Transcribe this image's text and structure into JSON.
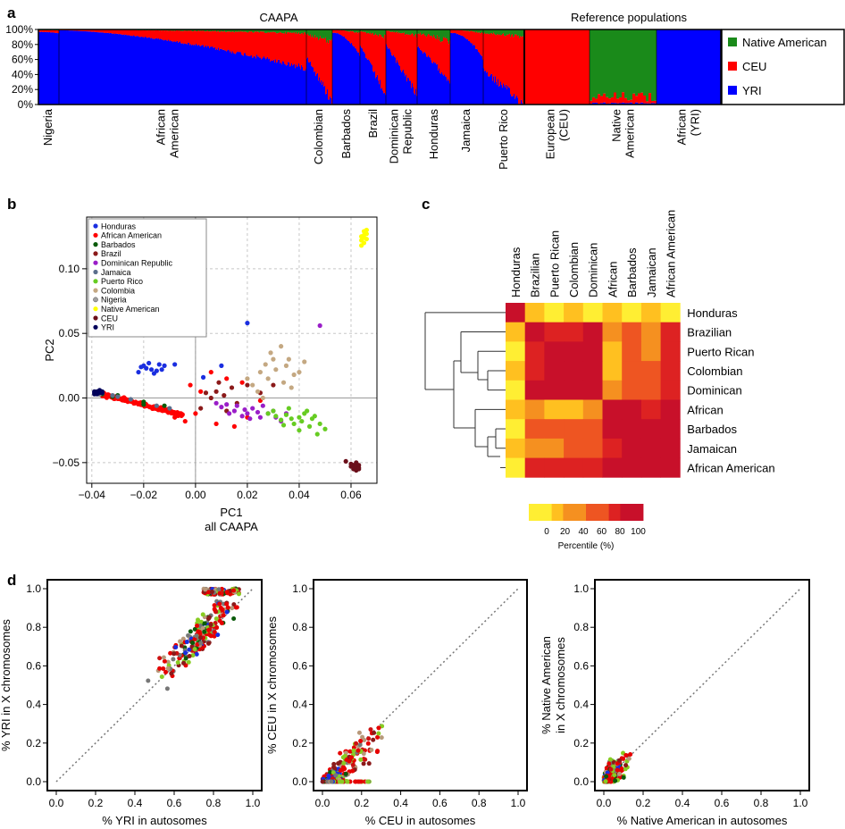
{
  "panel_labels": {
    "a": "a",
    "b": "b",
    "c": "c",
    "d": "d"
  },
  "colors": {
    "yri": "#0000ff",
    "ceu": "#ff0000",
    "native": "#1a8a1a",
    "text": "#000000"
  },
  "chart_data": [
    {
      "id": "a",
      "type": "bar",
      "subtype": "stacked-ancestry",
      "group_headers": [
        "CAAPA",
        "Reference populations"
      ],
      "ylim": [
        0,
        100
      ],
      "yticks": [
        "0%",
        "20%",
        "40%",
        "60%",
        "80%",
        "100%"
      ],
      "categories": [
        "Nigeria",
        "African American",
        "Colombian",
        "Barbados",
        "Brazil",
        "Dominican Republic",
        "Honduras",
        "Jamaica",
        "Puerto Rico",
        "European (CEU)",
        "Native American",
        "African (YRI)"
      ],
      "category_lines": [
        [
          "Nigeria"
        ],
        [
          "African",
          "American"
        ],
        [
          "Colombian"
        ],
        [
          "Barbados"
        ],
        [
          "Brazil"
        ],
        [
          "Dominican",
          "Republic"
        ],
        [
          "Honduras"
        ],
        [
          "Jamaica"
        ],
        [
          "Puerto Rico"
        ],
        [
          "European",
          "(CEU)"
        ],
        [
          "Native",
          "American"
        ],
        [
          "African",
          "(YRI)"
        ]
      ],
      "series": [
        {
          "name": "YRI",
          "mean_values": [
            96,
            79,
            34,
            86,
            46,
            47,
            55,
            85,
            23,
            0,
            2,
            100
          ]
        },
        {
          "name": "CEU",
          "mean_values": [
            3,
            19,
            55,
            12,
            48,
            48,
            35,
            13,
            70,
            100,
            8,
            0
          ]
        },
        {
          "name": "Native American",
          "mean_values": [
            1,
            2,
            11,
            2,
            6,
            5,
            10,
            2,
            7,
            0,
            90,
            0
          ]
        }
      ],
      "legend": [
        "Native American",
        "CEU",
        "YRI"
      ],
      "legend_position": "right"
    },
    {
      "id": "b",
      "type": "scatter",
      "title": "",
      "xlabel": "PC1",
      "xlabel2": "all CAAPA",
      "ylabel": "PC2",
      "xlim": [
        -0.042,
        0.07
      ],
      "ylim": [
        -0.066,
        0.14
      ],
      "xticks": [
        -0.04,
        -0.02,
        0.0,
        0.02,
        0.04,
        0.06
      ],
      "xtick_labels": [
        "−0.04",
        "−0.02",
        "0.00",
        "0.02",
        "0.04",
        "0.06"
      ],
      "yticks": [
        -0.05,
        0.0,
        0.05,
        0.1
      ],
      "ytick_labels": [
        "−0.05",
        "0.00",
        "0.05",
        "0.10"
      ],
      "legend_position": "top-left",
      "series": [
        {
          "name": "Honduras",
          "color": "#1a2ee0",
          "cluster": [
            [
              -0.02,
              0.025
            ],
            [
              -0.017,
              0.022
            ],
            [
              -0.014,
              0.026
            ],
            [
              -0.022,
              0.02
            ],
            [
              -0.018,
              0.027
            ],
            [
              -0.015,
              0.021
            ],
            [
              -0.012,
              0.025
            ],
            [
              -0.021,
              0.024
            ],
            [
              -0.016,
              0.019
            ],
            [
              -0.019,
              0.023
            ],
            [
              -0.013,
              0.022
            ],
            [
              -0.008,
              0.026
            ],
            [
              0.02,
              0.058
            ],
            [
              0.01,
              0.025
            ],
            [
              0.003,
              0.016
            ]
          ]
        },
        {
          "name": "African American",
          "color": "#ff0000",
          "line": {
            "from": [
              -0.036,
              0.003
            ],
            "to": [
              -0.005,
              -0.013
            ],
            "n": 140,
            "spread": 0.0022
          }
        },
        {
          "name": "Barbados",
          "color": "#0a5a0a",
          "points": [
            [
              -0.036,
              0.003
            ],
            [
              -0.03,
              0.002
            ],
            [
              -0.02,
              -0.003
            ],
            [
              -0.012,
              -0.006
            ],
            [
              -0.02,
              -0.005
            ],
            [
              -0.032,
              0.001
            ]
          ]
        },
        {
          "name": "Brazil",
          "color": "#8b1a1a",
          "cluster": [
            [
              0.008,
              0.005
            ],
            [
              0.014,
              0.008
            ],
            [
              0.006,
              0.0
            ],
            [
              0.02,
              0.01
            ],
            [
              0.012,
              -0.01
            ],
            [
              0.004,
              0.004
            ],
            [
              0.025,
              0.004
            ],
            [
              0.016,
              -0.004
            ],
            [
              0.009,
              0.012
            ],
            [
              0.002,
              -0.008
            ],
            [
              0.03,
              0.01
            ],
            [
              0.011,
              0.002
            ]
          ]
        },
        {
          "name": "Dominican Republic",
          "color": "#9a1ec8",
          "cluster": [
            [
              0.01,
              -0.007
            ],
            [
              0.015,
              -0.01
            ],
            [
              0.02,
              -0.012
            ],
            [
              0.025,
              -0.015
            ],
            [
              0.03,
              -0.01
            ],
            [
              0.012,
              -0.005
            ],
            [
              0.022,
              -0.008
            ],
            [
              0.018,
              -0.014
            ],
            [
              0.028,
              -0.012
            ],
            [
              0.033,
              -0.018
            ],
            [
              0.008,
              -0.004
            ],
            [
              0.026,
              -0.006
            ],
            [
              0.035,
              -0.012
            ],
            [
              0.021,
              -0.016
            ],
            [
              0.016,
              -0.006
            ],
            [
              0.031,
              -0.015
            ],
            [
              0.013,
              -0.012
            ],
            [
              0.024,
              -0.011
            ],
            [
              0.019,
              -0.009
            ],
            [
              0.048,
              0.056
            ]
          ]
        },
        {
          "name": "Jamaica",
          "color": "#5a6e8c",
          "points": [
            [
              -0.032,
              0.002
            ],
            [
              -0.025,
              -0.001
            ],
            [
              -0.015,
              -0.006
            ],
            [
              -0.03,
              0.001
            ],
            [
              -0.01,
              -0.008
            ]
          ]
        },
        {
          "name": "Puerto Rico",
          "color": "#66cc22",
          "cluster": [
            [
              0.03,
              -0.01
            ],
            [
              0.035,
              -0.013
            ],
            [
              0.04,
              -0.015
            ],
            [
              0.045,
              -0.016
            ],
            [
              0.038,
              -0.02
            ],
            [
              0.042,
              -0.012
            ],
            [
              0.033,
              -0.017
            ],
            [
              0.048,
              -0.02
            ],
            [
              0.036,
              -0.008
            ],
            [
              0.044,
              -0.022
            ],
            [
              0.04,
              -0.025
            ],
            [
              0.046,
              -0.014
            ],
            [
              0.031,
              -0.014
            ],
            [
              0.037,
              -0.016
            ],
            [
              0.05,
              -0.024
            ],
            [
              0.028,
              -0.012
            ],
            [
              0.041,
              -0.018
            ],
            [
              0.034,
              -0.021
            ],
            [
              0.047,
              -0.028
            ],
            [
              0.043,
              -0.01
            ]
          ]
        },
        {
          "name": "Colombia",
          "color": "#c4a882",
          "cluster": [
            [
              0.025,
              0.02
            ],
            [
              0.03,
              0.03
            ],
            [
              0.035,
              0.025
            ],
            [
              0.033,
              0.04
            ],
            [
              0.028,
              0.015
            ],
            [
              0.038,
              0.018
            ],
            [
              0.022,
              0.01
            ],
            [
              0.036,
              0.03
            ],
            [
              0.031,
              0.022
            ],
            [
              0.027,
              0.026
            ],
            [
              0.04,
              0.02
            ],
            [
              0.024,
              0.005
            ],
            [
              0.034,
              0.012
            ],
            [
              0.029,
              0.035
            ],
            [
              0.042,
              0.028
            ],
            [
              0.02,
              0.015
            ],
            [
              0.037,
              0.008
            ],
            [
              0.026,
              0.0
            ]
          ]
        },
        {
          "name": "Nigeria",
          "color": "#a0a0a0",
          "points": [
            [
              -0.038,
              0.004
            ],
            [
              -0.037,
              0.005
            ],
            [
              -0.036,
              0.004
            ],
            [
              -0.037,
              0.003
            ]
          ]
        },
        {
          "name": "Native American",
          "color": "#ffff00",
          "cluster": [
            [
              0.064,
              0.122
            ],
            [
              0.065,
              0.126
            ],
            [
              0.066,
              0.13
            ],
            [
              0.064,
              0.118
            ],
            [
              0.065,
              0.124
            ],
            [
              0.066,
              0.127
            ],
            [
              0.065,
              0.12
            ],
            [
              0.064,
              0.125
            ],
            [
              0.066,
              0.123
            ],
            [
              0.065,
              0.129
            ]
          ]
        },
        {
          "name": "CEU",
          "color": "#6b0f1a",
          "cluster": [
            [
              0.061,
              -0.052
            ],
            [
              0.062,
              -0.053
            ],
            [
              0.06,
              -0.051
            ],
            [
              0.063,
              -0.054
            ],
            [
              0.061,
              -0.055
            ],
            [
              0.062,
              -0.05
            ],
            [
              0.06,
              -0.053
            ],
            [
              0.063,
              -0.052
            ],
            [
              0.061,
              -0.054
            ],
            [
              0.062,
              -0.056
            ],
            [
              0.058,
              -0.049
            ],
            [
              0.063,
              -0.055
            ]
          ]
        },
        {
          "name": "YRI",
          "color": "#00005a",
          "cluster": [
            [
              -0.039,
              0.004
            ],
            [
              -0.038,
              0.005
            ],
            [
              -0.038,
              0.003
            ],
            [
              -0.037,
              0.004
            ],
            [
              -0.039,
              0.005
            ],
            [
              -0.036,
              0.005
            ],
            [
              -0.038,
              0.004
            ],
            [
              -0.037,
              0.006
            ],
            [
              -0.039,
              0.003
            ],
            [
              -0.036,
              0.004
            ]
          ]
        }
      ]
    },
    {
      "id": "c",
      "type": "heatmap",
      "column_labels": [
        "Honduras",
        "Brazilian",
        "Puerto Rican",
        "Colombian",
        "Dominican",
        "African",
        "Barbados",
        "Jamaican",
        "African American"
      ],
      "row_labels": [
        "Honduras",
        "Brazilian",
        "Puerto Rican",
        "Colombian",
        "Dominican",
        "African",
        "Barbados",
        "Jamaican",
        "African American"
      ],
      "values": [
        [
          100,
          20,
          15,
          20,
          15,
          20,
          15,
          20,
          15
        ],
        [
          20,
          100,
          80,
          80,
          90,
          40,
          60,
          50,
          70
        ],
        [
          15,
          80,
          100,
          90,
          90,
          25,
          60,
          40,
          70
        ],
        [
          20,
          80,
          90,
          100,
          95,
          30,
          60,
          55,
          70
        ],
        [
          15,
          90,
          90,
          95,
          100,
          40,
          60,
          60,
          75
        ],
        [
          20,
          40,
          25,
          30,
          40,
          100,
          90,
          80,
          85
        ],
        [
          15,
          60,
          60,
          60,
          60,
          90,
          100,
          95,
          90
        ],
        [
          20,
          50,
          40,
          55,
          60,
          80,
          95,
          100,
          95
        ],
        [
          15,
          70,
          70,
          70,
          75,
          85,
          90,
          95,
          100
        ]
      ],
      "colorbar_ticks": [
        0,
        20,
        40,
        60,
        80,
        100
      ],
      "colorbar_label": "Percentile (%)",
      "colorscale": [
        "#ffee33",
        "#ffc020",
        "#f59020",
        "#ee5522",
        "#dd2222",
        "#c8102a"
      ]
    },
    {
      "id": "d1",
      "type": "scatter",
      "xlabel": "% YRI in autosomes",
      "ylabel": "% YRI in X chromosomes",
      "xlim": [
        0,
        1
      ],
      "ylim": [
        0,
        1
      ],
      "ticks": [
        0.0,
        0.2,
        0.4,
        0.6,
        0.8,
        1.0
      ],
      "tick_labels": [
        "0.0",
        "0.2",
        "0.4",
        "0.6",
        "0.8",
        "1.0"
      ],
      "diagonal": true,
      "generator": {
        "mode": "yri",
        "n": 290
      }
    },
    {
      "id": "d2",
      "type": "scatter",
      "xlabel": "% CEU in autosomes",
      "ylabel": "% CEU in X chromosomes",
      "xlim": [
        0,
        1
      ],
      "ylim": [
        0,
        1
      ],
      "ticks": [
        0.0,
        0.2,
        0.4,
        0.6,
        0.8,
        1.0
      ],
      "tick_labels": [
        "0.0",
        "0.2",
        "0.4",
        "0.6",
        "0.8",
        "1.0"
      ],
      "diagonal": true,
      "generator": {
        "mode": "ceu",
        "n": 290
      }
    },
    {
      "id": "d3",
      "type": "scatter",
      "xlabel": "% Native American in autosomes",
      "ylabel": "% Native American",
      "ylabel2": "in X chromosomes",
      "xlim": [
        0,
        1
      ],
      "ylim": [
        0,
        1
      ],
      "ticks": [
        0.0,
        0.2,
        0.4,
        0.6,
        0.8,
        1.0
      ],
      "tick_labels": [
        "0.0",
        "0.2",
        "0.4",
        "0.6",
        "0.8",
        "1.0"
      ],
      "diagonal": true,
      "generator": {
        "mode": "nat",
        "n": 260
      }
    }
  ]
}
